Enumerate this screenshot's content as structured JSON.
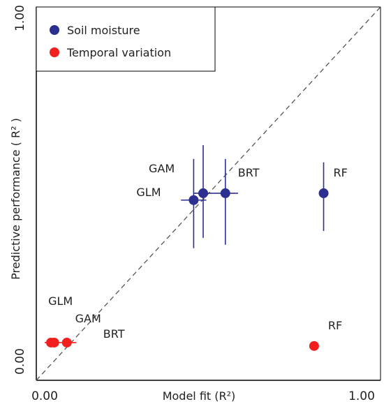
{
  "chart_data": {
    "type": "scatter",
    "xlabel": "Model fit (R²)",
    "ylabel": "Predictive performance ( R² )",
    "xlim": [
      0,
      1
    ],
    "ylim": [
      0,
      1
    ],
    "xticks": [
      "0.00",
      "1.00"
    ],
    "yticks": [
      "0.00",
      "1.00"
    ],
    "reference_line": "y = x (dashed)",
    "legend_position": "top-left",
    "series": [
      {
        "name": "Soil moisture",
        "color": "#2b2f8f",
        "points": [
          {
            "label": "GLM",
            "x": 0.47,
            "y": 0.47,
            "xerr": 0.04,
            "yerr_low": 0.14,
            "yerr_high": 0.12
          },
          {
            "label": "GAM",
            "x": 0.5,
            "y": 0.49,
            "xerr": 0.03,
            "yerr_low": 0.13,
            "yerr_high": 0.14
          },
          {
            "label": "BRT",
            "x": 0.57,
            "y": 0.49,
            "xerr": 0.04,
            "yerr_low": 0.15,
            "yerr_high": 0.1
          },
          {
            "label": "RF",
            "x": 0.88,
            "y": 0.49,
            "xerr": 0.0,
            "yerr_low": 0.11,
            "yerr_high": 0.09
          }
        ]
      },
      {
        "name": "Temporal variation",
        "color": "#f21f1f",
        "points": [
          {
            "label": "GLM",
            "x": 0.02,
            "y": 0.055,
            "xerr": 0.02,
            "yerr_low": 0,
            "yerr_high": 0
          },
          {
            "label": "GAM",
            "x": 0.03,
            "y": 0.055,
            "xerr": 0.01,
            "yerr_low": 0,
            "yerr_high": 0
          },
          {
            "label": "BRT",
            "x": 0.07,
            "y": 0.055,
            "xerr": 0.03,
            "yerr_low": 0,
            "yerr_high": 0
          },
          {
            "label": "RF",
            "x": 0.85,
            "y": 0.045,
            "xerr": 0.01,
            "yerr_low": 0,
            "yerr_high": 0
          }
        ]
      }
    ]
  }
}
